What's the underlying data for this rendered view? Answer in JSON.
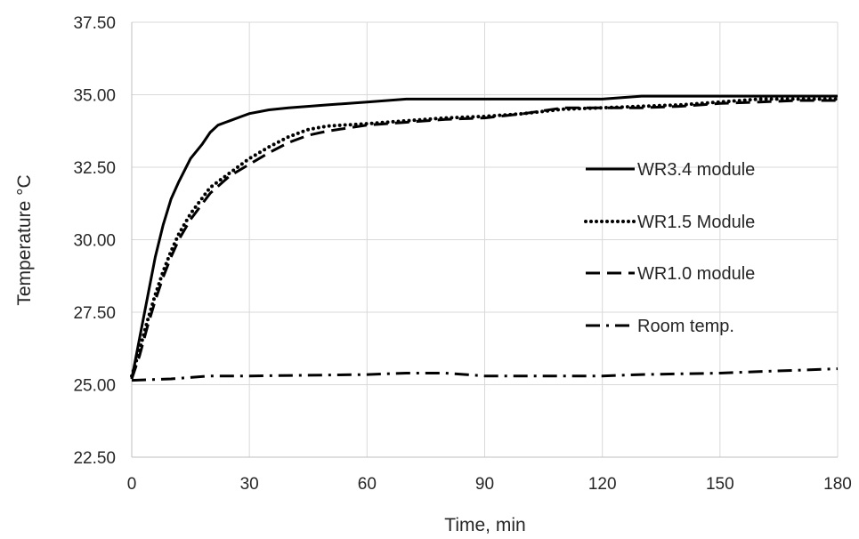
{
  "chart_data": {
    "type": "line",
    "title": "",
    "xlabel": "Time, min",
    "ylabel": "Temperature °C",
    "xlim": [
      0,
      180
    ],
    "ylim": [
      22.5,
      37.5
    ],
    "xticks": [
      "0",
      "30",
      "60",
      "90",
      "120",
      "150",
      "180"
    ],
    "yticks": [
      "22.50",
      "25.00",
      "27.50",
      "30.00",
      "32.50",
      "35.00",
      "37.50"
    ],
    "grid": true,
    "legend_position": "right",
    "series": [
      {
        "name": "WR3.4 module",
        "style": "solid",
        "points": [
          [
            0,
            25.2
          ],
          [
            2,
            26.6
          ],
          [
            4,
            28.0
          ],
          [
            6,
            29.4
          ],
          [
            8,
            30.5
          ],
          [
            10,
            31.4
          ],
          [
            12,
            32.0
          ],
          [
            15,
            32.8
          ],
          [
            18,
            33.3
          ],
          [
            20,
            33.7
          ],
          [
            22,
            33.95
          ],
          [
            25,
            34.1
          ],
          [
            28,
            34.25
          ],
          [
            30,
            34.35
          ],
          [
            35,
            34.48
          ],
          [
            40,
            34.55
          ],
          [
            50,
            34.65
          ],
          [
            60,
            34.75
          ],
          [
            70,
            34.85
          ],
          [
            80,
            34.85
          ],
          [
            90,
            34.85
          ],
          [
            100,
            34.85
          ],
          [
            120,
            34.85
          ],
          [
            130,
            34.95
          ],
          [
            150,
            34.95
          ],
          [
            180,
            34.95
          ]
        ]
      },
      {
        "name": "WR1.5 Module",
        "style": "dotted",
        "points": [
          [
            0,
            25.3
          ],
          [
            2,
            26.2
          ],
          [
            4,
            27.2
          ],
          [
            6,
            28.1
          ],
          [
            8,
            28.9
          ],
          [
            10,
            29.6
          ],
          [
            12,
            30.2
          ],
          [
            15,
            30.9
          ],
          [
            20,
            31.8
          ],
          [
            25,
            32.3
          ],
          [
            30,
            32.8
          ],
          [
            35,
            33.2
          ],
          [
            40,
            33.55
          ],
          [
            45,
            33.8
          ],
          [
            50,
            33.92
          ],
          [
            60,
            34.0
          ],
          [
            70,
            34.1
          ],
          [
            80,
            34.2
          ],
          [
            90,
            34.25
          ],
          [
            100,
            34.35
          ],
          [
            110,
            34.5
          ],
          [
            120,
            34.55
          ],
          [
            130,
            34.6
          ],
          [
            140,
            34.65
          ],
          [
            150,
            34.75
          ],
          [
            160,
            34.85
          ],
          [
            170,
            34.85
          ],
          [
            180,
            34.85
          ]
        ]
      },
      {
        "name": "WR1.0 module",
        "style": "dashed",
        "points": [
          [
            0,
            25.2
          ],
          [
            2,
            26.0
          ],
          [
            4,
            27.0
          ],
          [
            6,
            27.9
          ],
          [
            8,
            28.7
          ],
          [
            10,
            29.4
          ],
          [
            12,
            30.0
          ],
          [
            15,
            30.7
          ],
          [
            20,
            31.6
          ],
          [
            25,
            32.2
          ],
          [
            30,
            32.6
          ],
          [
            35,
            33.0
          ],
          [
            40,
            33.35
          ],
          [
            45,
            33.6
          ],
          [
            50,
            33.75
          ],
          [
            60,
            33.95
          ],
          [
            70,
            34.05
          ],
          [
            80,
            34.15
          ],
          [
            90,
            34.2
          ],
          [
            100,
            34.35
          ],
          [
            110,
            34.55
          ],
          [
            120,
            34.55
          ],
          [
            130,
            34.55
          ],
          [
            140,
            34.6
          ],
          [
            150,
            34.7
          ],
          [
            160,
            34.75
          ],
          [
            170,
            34.8
          ],
          [
            180,
            34.8
          ]
        ]
      },
      {
        "name": "Room temp.",
        "style": "dashdot",
        "points": [
          [
            0,
            25.15
          ],
          [
            10,
            25.2
          ],
          [
            20,
            25.3
          ],
          [
            30,
            25.3
          ],
          [
            60,
            25.35
          ],
          [
            70,
            25.4
          ],
          [
            80,
            25.4
          ],
          [
            90,
            25.3
          ],
          [
            120,
            25.3
          ],
          [
            130,
            25.35
          ],
          [
            150,
            25.4
          ],
          [
            160,
            25.45
          ],
          [
            170,
            25.5
          ],
          [
            180,
            25.55
          ]
        ]
      }
    ]
  }
}
